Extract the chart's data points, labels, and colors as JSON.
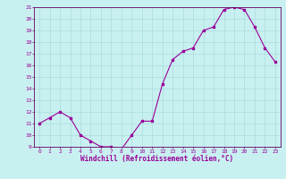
{
  "x": [
    0,
    1,
    2,
    3,
    4,
    5,
    6,
    7,
    8,
    9,
    10,
    11,
    12,
    13,
    14,
    15,
    16,
    17,
    18,
    19,
    20,
    21,
    22,
    23
  ],
  "y": [
    11.0,
    11.5,
    12.0,
    11.5,
    10.0,
    9.5,
    9.0,
    9.0,
    8.8,
    10.0,
    11.2,
    11.2,
    14.4,
    16.5,
    17.2,
    17.5,
    19.0,
    19.3,
    20.8,
    21.0,
    20.8,
    19.3,
    17.5,
    16.3
  ],
  "ylim": [
    9,
    21
  ],
  "xlim": [
    -0.5,
    23.5
  ],
  "yticks": [
    9,
    10,
    11,
    12,
    13,
    14,
    15,
    16,
    17,
    18,
    19,
    20,
    21
  ],
  "xticks": [
    0,
    1,
    2,
    3,
    4,
    5,
    6,
    7,
    8,
    9,
    10,
    11,
    12,
    13,
    14,
    15,
    16,
    17,
    18,
    19,
    20,
    21,
    22,
    23
  ],
  "line_color": "#990099",
  "marker": "s",
  "marker_size": 2.0,
  "bg_color": "#c8f0f0",
  "grid_color": "#aadddd",
  "xlabel": "Windchill (Refroidissement éolien,°C)",
  "xlabel_color": "#990099",
  "tick_color": "#990099",
  "axis_color": "#660066"
}
